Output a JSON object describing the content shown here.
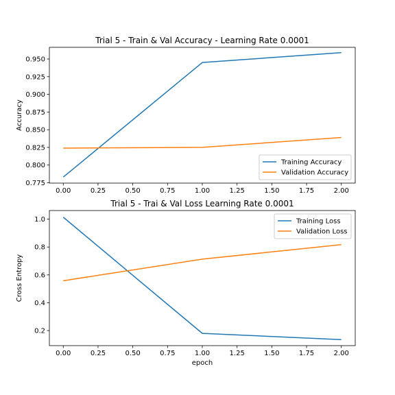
{
  "chart_data": [
    {
      "type": "line",
      "title": "Trial 5 - Train & Val Accuracy - Learning Rate 0.0001",
      "xlabel": "",
      "ylabel": "Accuracy",
      "x": [
        0,
        1,
        2
      ],
      "xlim": [
        -0.1,
        2.1
      ],
      "ylim": [
        0.7745,
        0.9665
      ],
      "xticks": [
        0.0,
        0.25,
        0.5,
        0.75,
        1.0,
        1.25,
        1.5,
        1.75,
        2.0
      ],
      "xtick_labels": [
        "0.00",
        "0.25",
        "0.50",
        "0.75",
        "1.00",
        "1.25",
        "1.50",
        "1.75",
        "2.00"
      ],
      "yticks": [
        0.775,
        0.8,
        0.825,
        0.85,
        0.875,
        0.9,
        0.925,
        0.95
      ],
      "ytick_labels": [
        "0.775",
        "0.800",
        "0.825",
        "0.850",
        "0.875",
        "0.900",
        "0.925",
        "0.950"
      ],
      "legend_position": "lower-right",
      "grid": false,
      "series": [
        {
          "name": "Training Accuracy",
          "color": "#1f77b4",
          "values": [
            0.783,
            0.945,
            0.959
          ]
        },
        {
          "name": "Validation Accuracy",
          "color": "#ff7f0e",
          "values": [
            0.824,
            0.825,
            0.839
          ]
        }
      ]
    },
    {
      "type": "line",
      "title": "Trial 5 - Trai & Val Loss Learning Rate 0.0001",
      "xlabel": "epoch",
      "ylabel": "Cross Entropy",
      "x": [
        0,
        1,
        2
      ],
      "xlim": [
        -0.1,
        2.1
      ],
      "ylim": [
        0.092,
        1.062
      ],
      "xticks": [
        0.0,
        0.25,
        0.5,
        0.75,
        1.0,
        1.25,
        1.5,
        1.75,
        2.0
      ],
      "xtick_labels": [
        "0.00",
        "0.25",
        "0.50",
        "0.75",
        "1.00",
        "1.25",
        "1.50",
        "1.75",
        "2.00"
      ],
      "yticks": [
        0.2,
        0.4,
        0.6,
        0.8,
        1.0
      ],
      "ytick_labels": [
        "0.2",
        "0.4",
        "0.6",
        "0.8",
        "1.0"
      ],
      "legend_position": "upper-right",
      "grid": false,
      "series": [
        {
          "name": "Training Loss",
          "color": "#1f77b4",
          "values": [
            1.014,
            0.18,
            0.135
          ]
        },
        {
          "name": "Validation Loss",
          "color": "#ff7f0e",
          "values": [
            0.558,
            0.713,
            0.817
          ]
        }
      ]
    }
  ]
}
